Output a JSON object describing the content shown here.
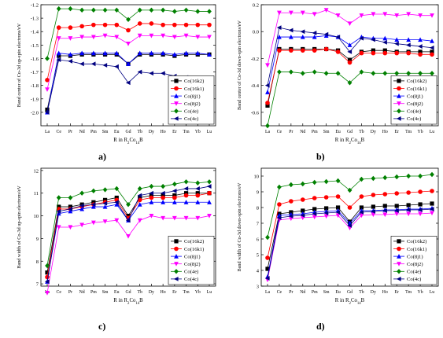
{
  "panel_letters": [
    "a)",
    "b)",
    "c)",
    "d)"
  ],
  "chart_data": [
    {
      "type": "line",
      "panel": "a)",
      "ylabel": "Band center of Co-3d up-spin electrons/eV",
      "xlabel": "R in R2Co14B",
      "x": [
        "La",
        "Ce",
        "Pr",
        "Nd",
        "Pm",
        "Sm",
        "Eu",
        "Gd",
        "Tb",
        "Dy",
        "Ho",
        "Er",
        "Tm",
        "Yb",
        "Lu"
      ],
      "ylim": [
        -2.1,
        -1.2
      ],
      "yticks": [
        -2.0,
        -1.9,
        -1.8,
        -1.7,
        -1.6,
        -1.5,
        -1.4,
        -1.3,
        -1.2
      ],
      "legend_position": "bottom-right",
      "series": [
        {
          "name": "Co(16k2)",
          "color": "#000000",
          "marker": "square",
          "values": [
            -1.98,
            -1.58,
            -1.58,
            -1.57,
            -1.57,
            -1.57,
            -1.57,
            -1.64,
            -1.57,
            -1.57,
            -1.57,
            -1.58,
            -1.57,
            -1.57,
            -1.57
          ]
        },
        {
          "name": "Co(16k1)",
          "color": "#ff0000",
          "marker": "circle",
          "values": [
            -1.76,
            -1.37,
            -1.37,
            -1.36,
            -1.35,
            -1.35,
            -1.35,
            -1.39,
            -1.34,
            -1.34,
            -1.35,
            -1.35,
            -1.35,
            -1.35,
            -1.35
          ]
        },
        {
          "name": "Co(8j1)",
          "color": "#0000ff",
          "marker": "triangle-up",
          "values": [
            -2.0,
            -1.56,
            -1.57,
            -1.56,
            -1.56,
            -1.56,
            -1.56,
            -1.64,
            -1.56,
            -1.56,
            -1.56,
            -1.57,
            -1.56,
            -1.56,
            -1.57
          ]
        },
        {
          "name": "Co(8j2)",
          "color": "#ff00ff",
          "marker": "triangle-down",
          "values": [
            -1.83,
            -1.45,
            -1.45,
            -1.44,
            -1.44,
            -1.43,
            -1.44,
            -1.49,
            -1.43,
            -1.43,
            -1.43,
            -1.44,
            -1.43,
            -1.44,
            -1.44
          ]
        },
        {
          "name": "Co(4e)",
          "color": "#008000",
          "marker": "diamond",
          "values": [
            -1.6,
            -1.23,
            -1.23,
            -1.24,
            -1.24,
            -1.24,
            -1.24,
            -1.31,
            -1.24,
            -1.24,
            -1.24,
            -1.25,
            -1.24,
            -1.25,
            -1.25
          ]
        },
        {
          "name": "Co(4c)",
          "color": "#000080",
          "marker": "triangle-left",
          "values": [
            -2.0,
            -1.61,
            -1.62,
            -1.64,
            -1.64,
            -1.65,
            -1.66,
            -1.78,
            -1.7,
            -1.71,
            -1.71,
            -1.73,
            -1.74,
            -1.75,
            -1.76
          ]
        }
      ]
    },
    {
      "type": "line",
      "panel": "b)",
      "ylabel": "Band center of Co-3d down-spin electrons/eV",
      "xlabel": "R in R2Co14B",
      "x": [
        "La",
        "Ce",
        "Pr",
        "Nd",
        "Pm",
        "Sm",
        "Eu",
        "Gd",
        "Tb",
        "Dy",
        "Ho",
        "Er",
        "Tm",
        "Yb",
        "Lu"
      ],
      "ylim": [
        -0.7,
        0.2
      ],
      "yticks": [
        -0.6,
        -0.4,
        -0.2,
        0.0,
        0.2
      ],
      "legend_position": "bottom-right",
      "series": [
        {
          "name": "Co(16k2)",
          "color": "#000000",
          "marker": "square",
          "values": [
            -0.55,
            -0.13,
            -0.13,
            -0.13,
            -0.13,
            -0.13,
            -0.14,
            -0.21,
            -0.15,
            -0.14,
            -0.14,
            -0.15,
            -0.15,
            -0.15,
            -0.15
          ]
        },
        {
          "name": "Co(16k1)",
          "color": "#ff0000",
          "marker": "circle",
          "values": [
            -0.53,
            -0.14,
            -0.14,
            -0.14,
            -0.14,
            -0.13,
            -0.15,
            -0.23,
            -0.16,
            -0.16,
            -0.16,
            -0.16,
            -0.16,
            -0.17,
            -0.17
          ]
        },
        {
          "name": "Co(8j1)",
          "color": "#0000ff",
          "marker": "triangle-up",
          "values": [
            -0.45,
            -0.04,
            -0.04,
            -0.04,
            -0.04,
            -0.03,
            -0.04,
            -0.1,
            -0.04,
            -0.05,
            -0.05,
            -0.06,
            -0.06,
            -0.06,
            -0.07
          ]
        },
        {
          "name": "Co(8j2)",
          "color": "#ff00ff",
          "marker": "triangle-down",
          "values": [
            -0.25,
            0.14,
            0.14,
            0.14,
            0.13,
            0.16,
            0.12,
            0.06,
            0.12,
            0.13,
            0.13,
            0.12,
            0.13,
            0.12,
            0.12
          ]
        },
        {
          "name": "Co(4e)",
          "color": "#008000",
          "marker": "diamond",
          "values": [
            -0.7,
            -0.3,
            -0.3,
            -0.31,
            -0.3,
            -0.31,
            -0.31,
            -0.38,
            -0.3,
            -0.31,
            -0.31,
            -0.31,
            -0.31,
            -0.31,
            -0.31
          ]
        },
        {
          "name": "Co(4c)",
          "color": "#000080",
          "marker": "triangle-left",
          "values": [
            -0.4,
            0.03,
            0.01,
            0.0,
            -0.01,
            -0.02,
            -0.04,
            -0.15,
            -0.05,
            -0.06,
            -0.08,
            -0.09,
            -0.1,
            -0.11,
            -0.12
          ]
        }
      ]
    },
    {
      "type": "line",
      "panel": "c)",
      "ylabel": "Band width of Co-3d up-spin electrons/eV",
      "xlabel": "R in R2Co14B",
      "x": [
        "La",
        "Ce",
        "Pr",
        "Nd",
        "Pm",
        "Sm",
        "Eu",
        "Gd",
        "Tb",
        "Dy",
        "Ho",
        "Er",
        "Tm",
        "Yb",
        "Lu"
      ],
      "ylim": [
        6.9,
        12.1
      ],
      "yticks": [
        7,
        8,
        9,
        10,
        11,
        12
      ],
      "legend_position": "bottom-right",
      "series": [
        {
          "name": "Co(16k2)",
          "color": "#000000",
          "marker": "square",
          "values": [
            7.5,
            10.4,
            10.4,
            10.5,
            10.6,
            10.7,
            10.8,
            10.0,
            10.8,
            10.9,
            10.9,
            10.9,
            11.0,
            11.0,
            11.0
          ]
        },
        {
          "name": "Co(16k1)",
          "color": "#ff0000",
          "marker": "circle",
          "values": [
            7.3,
            10.3,
            10.3,
            10.4,
            10.5,
            10.6,
            10.7,
            9.9,
            10.7,
            10.8,
            10.8,
            10.8,
            10.9,
            10.9,
            11.0
          ]
        },
        {
          "name": "Co(8j1)",
          "color": "#0000ff",
          "marker": "triangle-up",
          "values": [
            7.1,
            10.1,
            10.2,
            10.3,
            10.4,
            10.4,
            10.5,
            9.8,
            10.5,
            10.6,
            10.6,
            10.6,
            10.6,
            10.6,
            10.6
          ]
        },
        {
          "name": "Co(8j2)",
          "color": "#ff00ff",
          "marker": "triangle-down",
          "values": [
            6.6,
            9.5,
            9.5,
            9.6,
            9.7,
            9.75,
            9.8,
            9.1,
            9.8,
            10.0,
            9.9,
            9.9,
            9.9,
            9.9,
            10.0
          ]
        },
        {
          "name": "Co(4e)",
          "color": "#008000",
          "marker": "diamond",
          "values": [
            7.8,
            10.8,
            10.8,
            11.0,
            11.1,
            11.15,
            11.2,
            10.5,
            11.2,
            11.3,
            11.3,
            11.4,
            11.5,
            11.45,
            11.5
          ]
        },
        {
          "name": "Co(4c)",
          "color": "#000080",
          "marker": "triangle-left",
          "values": [
            7.1,
            10.2,
            10.3,
            10.45,
            10.5,
            10.55,
            10.6,
            9.8,
            10.9,
            11.0,
            11.0,
            11.1,
            11.2,
            11.2,
            11.3
          ]
        }
      ]
    },
    {
      "type": "line",
      "panel": "d)",
      "ylabel": "Band width of Co-3d down-spin electrons/eV",
      "xlabel": "R in R2Co14B",
      "x": [
        "La",
        "Ce",
        "Pr",
        "Nd",
        "Pm",
        "Sm",
        "Eu",
        "Gd",
        "Tb",
        "Dy",
        "Ho",
        "Er",
        "Tm",
        "Yb",
        "Lu"
      ],
      "ylim": [
        3,
        10.5
      ],
      "yticks": [
        3,
        4,
        5,
        6,
        7,
        8,
        9,
        10
      ],
      "legend_position": "bottom-right",
      "series": [
        {
          "name": "Co(16k2)",
          "color": "#000000",
          "marker": "square",
          "values": [
            4.1,
            7.6,
            7.7,
            7.8,
            7.9,
            7.95,
            8.0,
            7.1,
            8.0,
            8.05,
            8.1,
            8.1,
            8.15,
            8.2,
            8.25
          ]
        },
        {
          "name": "Co(16k1)",
          "color": "#ff0000",
          "marker": "circle",
          "values": [
            4.8,
            8.2,
            8.4,
            8.5,
            8.6,
            8.65,
            8.7,
            8.0,
            8.7,
            8.8,
            8.85,
            8.9,
            8.95,
            9.0,
            9.05
          ]
        },
        {
          "name": "Co(8j1)",
          "color": "#0000ff",
          "marker": "triangle-up",
          "values": [
            3.6,
            7.5,
            7.55,
            7.6,
            7.7,
            7.75,
            7.8,
            7.0,
            7.8,
            7.8,
            7.85,
            7.85,
            7.9,
            7.9,
            7.95
          ]
        },
        {
          "name": "Co(8j2)",
          "color": "#ff00ff",
          "marker": "triangle-down",
          "values": [
            3.4,
            7.2,
            7.3,
            7.35,
            7.4,
            7.45,
            7.5,
            6.7,
            7.5,
            7.55,
            7.55,
            7.6,
            7.6,
            7.6,
            7.65
          ]
        },
        {
          "name": "Co(4e)",
          "color": "#008000",
          "marker": "diamond",
          "values": [
            6.1,
            9.3,
            9.45,
            9.5,
            9.6,
            9.65,
            9.7,
            9.1,
            9.8,
            9.85,
            9.9,
            9.95,
            10.0,
            10.0,
            10.1
          ]
        },
        {
          "name": "Co(4c)",
          "color": "#000080",
          "marker": "triangle-left",
          "values": [
            3.5,
            7.35,
            7.45,
            7.5,
            7.6,
            7.65,
            7.7,
            6.85,
            7.7,
            7.75,
            7.8,
            7.8,
            7.85,
            7.85,
            7.9
          ]
        }
      ]
    }
  ]
}
